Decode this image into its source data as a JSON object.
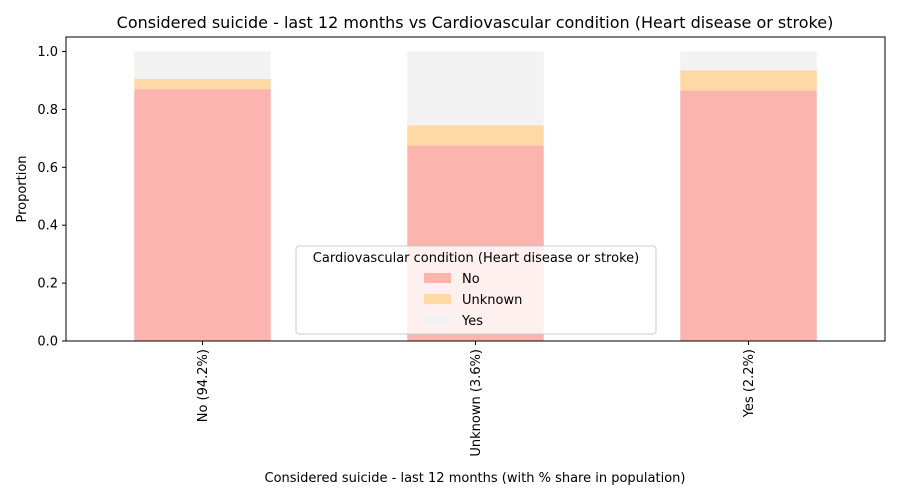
{
  "chart_data": {
    "type": "bar",
    "stacked": true,
    "normalized": true,
    "title": "Considered suicide - last 12 months vs Cardiovascular condition (Heart disease or stroke)",
    "xlabel": "Considered suicide - last 12 months (with % share in population)",
    "ylabel": "Proportion",
    "ylim": [
      0,
      1.05
    ],
    "yticks": [
      "0.0",
      "0.2",
      "0.4",
      "0.6",
      "0.8",
      "1.0"
    ],
    "categories": [
      "No (94.2%)",
      "Unknown (3.6%)",
      "Yes (2.2%)"
    ],
    "series": [
      {
        "name": "No",
        "color": "#fbb4ae",
        "values": [
          0.87,
          0.675,
          0.865
        ]
      },
      {
        "name": "Unknown",
        "color": "#fed9a6",
        "values": [
          0.035,
          0.07,
          0.07
        ]
      },
      {
        "name": "Yes",
        "color": "#f2f2f2",
        "values": [
          0.095,
          0.255,
          0.065
        ]
      }
    ],
    "grid": false,
    "legend": {
      "title": "Cardiovascular condition (Heart disease or stroke)",
      "placement": "lower center"
    }
  }
}
